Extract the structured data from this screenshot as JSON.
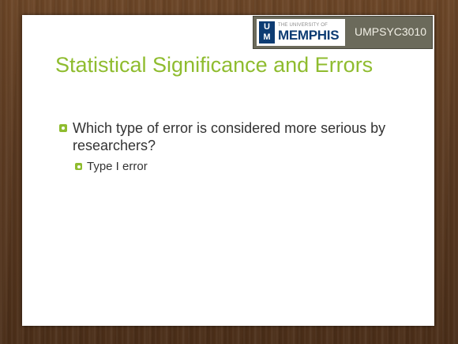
{
  "header": {
    "logo_small": "THE UNIVERSITY OF",
    "logo_main": "MEMPHIS",
    "logo_mark_top": "U",
    "logo_mark_bottom": "M",
    "course_code": "UMPSYC3010"
  },
  "slide": {
    "title": "Statistical Significance and Errors",
    "bullets": [
      {
        "text": "Which type of error is considered more serious by researchers?",
        "sub_bullets": [
          "Type I error"
        ]
      }
    ]
  },
  "colors": {
    "accent_green": "#8fbc2f",
    "memphis_blue": "#0d3c73",
    "badge_gray": "#6b6a5b",
    "wood_brown": "#5a3920"
  },
  "icons": {
    "bullet": "square-ring-bullet-icon"
  }
}
